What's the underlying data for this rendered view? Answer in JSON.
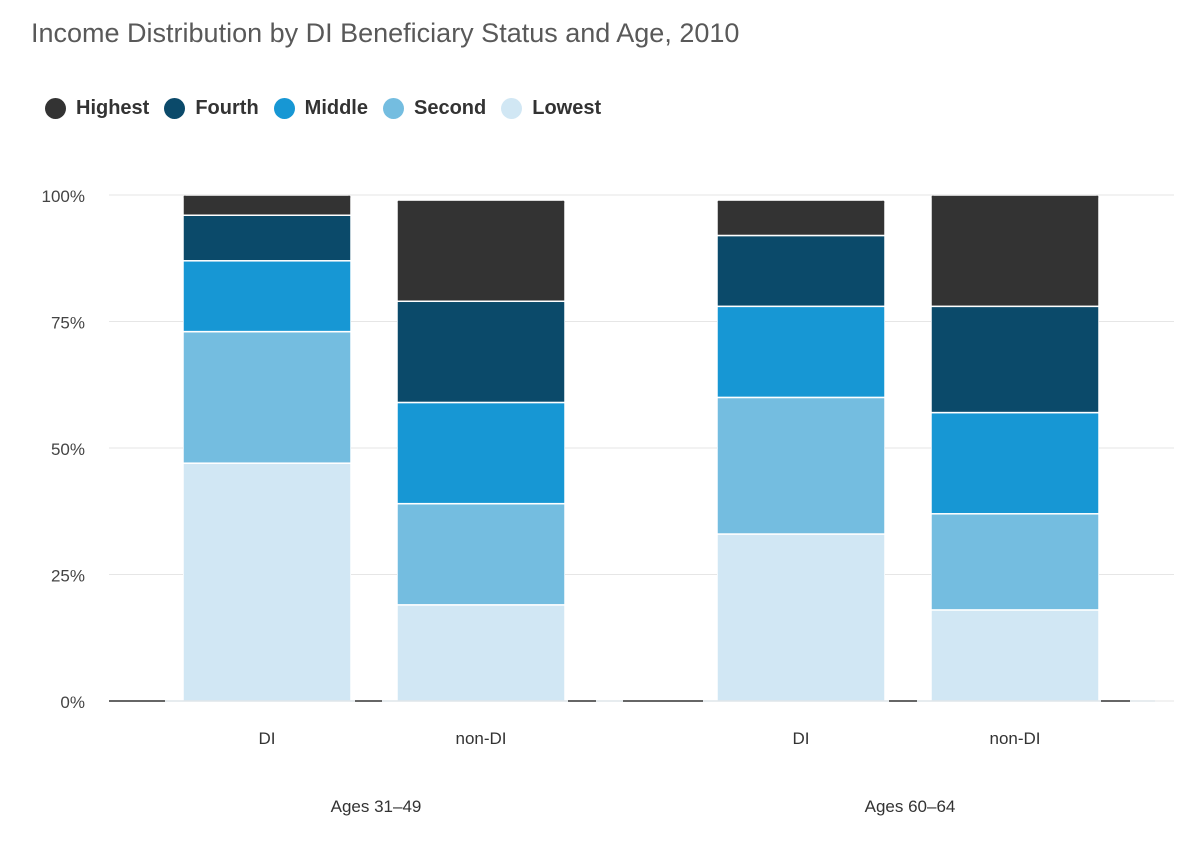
{
  "title": "Income Distribution by DI Beneficiary Status and Age, 2010",
  "legend": [
    {
      "label": "Highest",
      "color": "#333333"
    },
    {
      "label": "Fourth",
      "color": "#0b4a6a"
    },
    {
      "label": "Middle",
      "color": "#1797d4"
    },
    {
      "label": "Second",
      "color": "#74bde0"
    },
    {
      "label": "Lowest",
      "color": "#d1e7f4"
    }
  ],
  "chart_data": {
    "type": "bar",
    "stacked": true,
    "title": "Income Distribution by DI Beneficiary Status and Age, 2010",
    "ylim": [
      0,
      100
    ],
    "y_ticks": [
      "0%",
      "25%",
      "50%",
      "75%",
      "100%"
    ],
    "grid": true,
    "legend_position": "top-left",
    "groups": [
      {
        "label": "Ages 31–49",
        "categories": [
          "DI",
          "non-DI"
        ]
      },
      {
        "label": "Ages 60–64",
        "categories": [
          "DI",
          "non-DI"
        ]
      }
    ],
    "categories": [
      "DI",
      "non-DI",
      "DI",
      "non-DI"
    ],
    "series": [
      {
        "name": "Lowest",
        "color": "#d1e7f4",
        "values": [
          47,
          19,
          33,
          18
        ]
      },
      {
        "name": "Second",
        "color": "#74bde0",
        "values": [
          26,
          20,
          27,
          19
        ]
      },
      {
        "name": "Middle",
        "color": "#1797d4",
        "values": [
          14,
          20,
          18,
          20
        ]
      },
      {
        "name": "Fourth",
        "color": "#0b4a6a",
        "values": [
          9,
          20,
          14,
          21
        ]
      },
      {
        "name": "Highest",
        "color": "#333333",
        "values": [
          4,
          20,
          7,
          22
        ]
      }
    ]
  }
}
